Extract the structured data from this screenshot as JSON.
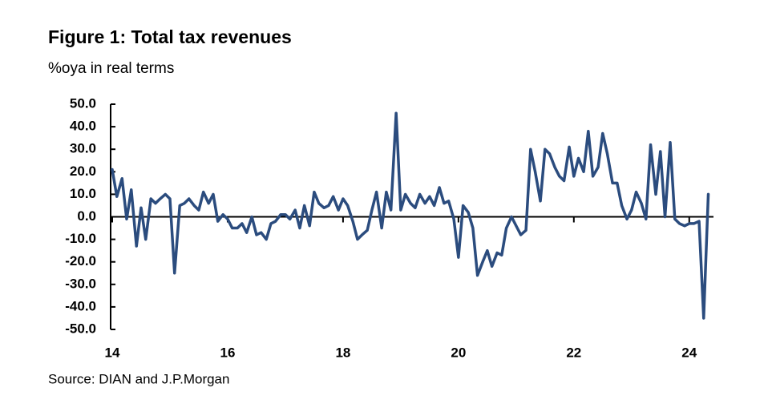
{
  "chart_data": {
    "type": "line",
    "title": "Figure 1: Total tax revenues",
    "subtitle": "%oya in real terms",
    "source": "Source: DIAN and J.P.Morgan",
    "x": [
      2014,
      2014.08,
      2014.17,
      2014.25,
      2014.33,
      2014.42,
      2014.5,
      2014.58,
      2014.67,
      2014.75,
      2014.83,
      2014.92,
      2015,
      2015.08,
      2015.17,
      2015.25,
      2015.33,
      2015.42,
      2015.5,
      2015.58,
      2015.67,
      2015.75,
      2015.83,
      2015.92,
      2016,
      2016.08,
      2016.17,
      2016.25,
      2016.33,
      2016.42,
      2016.5,
      2016.58,
      2016.67,
      2016.75,
      2016.83,
      2016.92,
      2017,
      2017.08,
      2017.17,
      2017.25,
      2017.33,
      2017.42,
      2017.5,
      2017.58,
      2017.67,
      2017.75,
      2017.83,
      2017.92,
      2018,
      2018.08,
      2018.17,
      2018.25,
      2018.33,
      2018.42,
      2018.5,
      2018.58,
      2018.67,
      2018.75,
      2018.83,
      2018.92,
      2019,
      2019.08,
      2019.17,
      2019.25,
      2019.33,
      2019.42,
      2019.5,
      2019.58,
      2019.67,
      2019.75,
      2019.83,
      2019.92,
      2020,
      2020.08,
      2020.17,
      2020.25,
      2020.33,
      2020.42,
      2020.5,
      2020.58,
      2020.67,
      2020.75,
      2020.83,
      2020.92,
      2021,
      2021.08,
      2021.17,
      2021.25,
      2021.33,
      2021.42,
      2021.5,
      2021.58,
      2021.67,
      2021.75,
      2021.83,
      2021.92,
      2022,
      2022.08,
      2022.17,
      2022.25,
      2022.33,
      2022.42,
      2022.5,
      2022.58,
      2022.67,
      2022.75,
      2022.83,
      2022.92,
      2023,
      2023.08,
      2023.17,
      2023.25,
      2023.33,
      2023.42,
      2023.5,
      2023.58,
      2023.67,
      2023.75,
      2023.83,
      2023.92,
      2024,
      2024.08,
      2024.17,
      2024.25,
      2024.33
    ],
    "series": [
      {
        "color": "#2b4c7e",
        "values": [
          21,
          9,
          17,
          -1,
          12,
          -13,
          4,
          -10,
          8,
          6,
          8,
          10,
          8,
          -25,
          5,
          6,
          8,
          5,
          3,
          11,
          6,
          10,
          -2,
          1,
          -1,
          -5,
          -5,
          -3,
          -7,
          0,
          -8,
          -7,
          -10,
          -3,
          -2,
          1,
          1,
          -1,
          3,
          -5,
          5,
          -4,
          11,
          6,
          4,
          5,
          9,
          3,
          8,
          5,
          -2,
          -10,
          -8,
          -6,
          3,
          11,
          -5,
          11,
          3,
          46,
          3,
          10,
          6,
          4,
          10,
          6,
          9,
          5,
          13,
          6,
          7,
          -1,
          -18,
          5,
          2,
          -5,
          -26,
          -20,
          -15,
          -22,
          -16,
          -17,
          -5,
          0,
          -4,
          -8,
          -6,
          30,
          20,
          7,
          30,
          28,
          22,
          18,
          16,
          31,
          18,
          26,
          20,
          38,
          18,
          22,
          37,
          28,
          15,
          15,
          5,
          -1,
          3,
          11,
          6,
          -1,
          32,
          10,
          29,
          0,
          33,
          -1,
          -3,
          -4,
          -3,
          -3,
          -2,
          -45,
          10
        ]
      }
    ],
    "xlim": [
      2014,
      2024.42
    ],
    "xticks": [
      {
        "value": 2014,
        "label": "14"
      },
      {
        "value": 2016,
        "label": "16"
      },
      {
        "value": 2018,
        "label": "18"
      },
      {
        "value": 2020,
        "label": "20"
      },
      {
        "value": 2022,
        "label": "22"
      },
      {
        "value": 2024,
        "label": "24"
      }
    ],
    "ylim": [
      -50,
      50
    ],
    "yticks": [
      {
        "value": 50,
        "label": "50.0"
      },
      {
        "value": 40,
        "label": "40.0"
      },
      {
        "value": 30,
        "label": "30.0"
      },
      {
        "value": 20,
        "label": "20.0"
      },
      {
        "value": 10,
        "label": "10.0"
      },
      {
        "value": 0,
        "label": "0.0"
      },
      {
        "value": -10,
        "label": "-10.0"
      },
      {
        "value": -20,
        "label": "-20.0"
      },
      {
        "value": -30,
        "label": "-30.0"
      },
      {
        "value": -40,
        "label": "-40.0"
      },
      {
        "value": -50,
        "label": "-50.0"
      }
    ]
  }
}
